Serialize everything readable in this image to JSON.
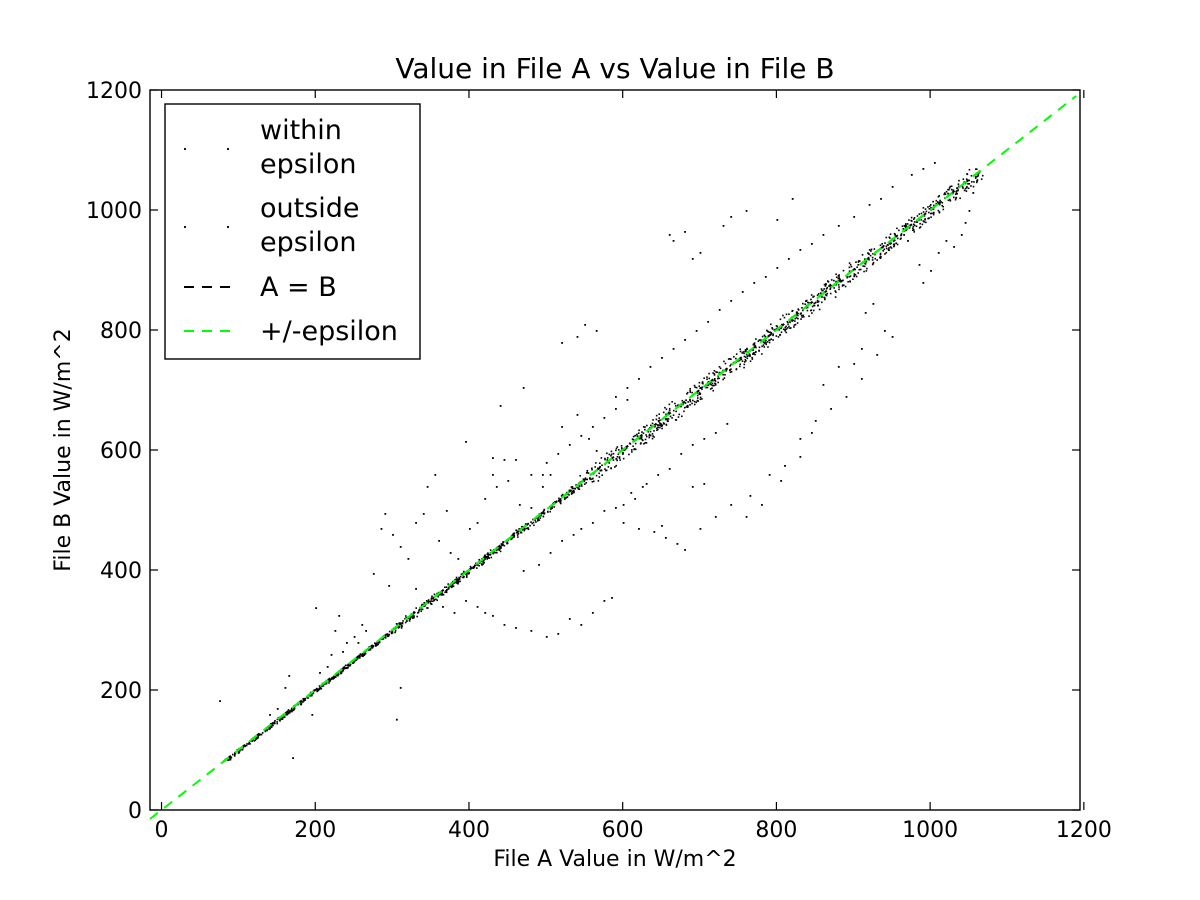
{
  "chart_data": {
    "type": "scatter",
    "title": "Value in File A vs Value in File B",
    "xlabel": "File A Value in W/m^2",
    "ylabel": "File B Value in W/m^2",
    "xlim": [
      -15,
      1195
    ],
    "ylim": [
      0,
      1200
    ],
    "xticks": [
      0,
      200,
      400,
      600,
      800,
      1000,
      1200
    ],
    "yticks": [
      0,
      200,
      400,
      600,
      800,
      1000,
      1200
    ],
    "x_tick_labels": [
      "0",
      "200",
      "400",
      "600",
      "800",
      "1000",
      "1200"
    ],
    "y_tick_labels": [
      "0",
      "200",
      "400",
      "600",
      "800",
      "1000",
      "1200"
    ],
    "grid": false,
    "legend_position": "top-left",
    "legend": {
      "within": [
        "within",
        "epsilon"
      ],
      "outside": [
        "outside",
        "epsilon"
      ],
      "a_equals_b": "A = B",
      "epsilon": "+/-epsilon"
    },
    "series": [
      {
        "name": "within epsilon",
        "kind": "points",
        "color": "#000000",
        "points_described": "dense band of tens of thousands of points hugging the line y = x from about x = 80 to x = 1065; band widens above x = 550",
        "x_range": [
          80,
          1065
        ]
      },
      {
        "name": "outside epsilon",
        "kind": "points",
        "color": "#000000",
        "points": [
          [
            75,
            183
          ],
          [
            170,
            88
          ],
          [
            195,
            160
          ],
          [
            200,
            338
          ],
          [
            230,
            325
          ],
          [
            225,
            300
          ],
          [
            305,
            152
          ],
          [
            310,
            205
          ],
          [
            395,
            615
          ],
          [
            430,
            588
          ],
          [
            440,
            675
          ],
          [
            470,
            705
          ],
          [
            520,
            780
          ],
          [
            540,
            790
          ],
          [
            550,
            810
          ],
          [
            565,
            800
          ],
          [
            660,
            960
          ],
          [
            665,
            950
          ],
          [
            680,
            965
          ],
          [
            690,
            920
          ],
          [
            700,
            930
          ],
          [
            730,
            975
          ],
          [
            740,
            990
          ],
          [
            760,
            1000
          ],
          [
            800,
            985
          ],
          [
            820,
            1020
          ],
          [
            915,
            830
          ],
          [
            925,
            845
          ],
          [
            940,
            800
          ],
          [
            965,
            960
          ],
          [
            970,
            950
          ],
          [
            860,
            710
          ],
          [
            880,
            740
          ],
          [
            900,
            745
          ],
          [
            910,
            770
          ],
          [
            760,
            490
          ],
          [
            780,
            510
          ],
          [
            805,
            550
          ],
          [
            830,
            590
          ],
          [
            845,
            630
          ],
          [
            600,
            510
          ],
          [
            615,
            520
          ],
          [
            625,
            540
          ],
          [
            650,
            475
          ],
          [
            690,
            540
          ],
          [
            705,
            545
          ],
          [
            420,
            520
          ],
          [
            435,
            540
          ],
          [
            450,
            550
          ],
          [
            465,
            510
          ],
          [
            480,
            505
          ],
          [
            495,
            540
          ],
          [
            505,
            560
          ],
          [
            330,
            480
          ],
          [
            340,
            495
          ],
          [
            360,
            450
          ],
          [
            375,
            430
          ],
          [
            385,
            420
          ],
          [
            400,
            470
          ],
          [
            410,
            480
          ],
          [
            345,
            540
          ],
          [
            355,
            560
          ],
          [
            370,
            500
          ],
          [
            285,
            470
          ],
          [
            290,
            495
          ],
          [
            300,
            460
          ],
          [
            310,
            440
          ],
          [
            320,
            420
          ],
          [
            275,
            395
          ],
          [
            295,
            375
          ],
          [
            330,
            370
          ],
          [
            365,
            340
          ],
          [
            380,
            330
          ],
          [
            395,
            350
          ],
          [
            410,
            340
          ],
          [
            420,
            330
          ],
          [
            430,
            325
          ],
          [
            445,
            310
          ],
          [
            460,
            305
          ],
          [
            480,
            300
          ],
          [
            500,
            290
          ],
          [
            515,
            295
          ],
          [
            530,
            320
          ],
          [
            545,
            310
          ],
          [
            560,
            330
          ],
          [
            575,
            350
          ],
          [
            585,
            355
          ],
          [
            470,
            400
          ],
          [
            490,
            410
          ],
          [
            505,
            430
          ],
          [
            520,
            450
          ],
          [
            535,
            460
          ],
          [
            545,
            470
          ],
          [
            560,
            480
          ],
          [
            575,
            500
          ],
          [
            590,
            505
          ],
          [
            610,
            530
          ],
          [
            630,
            545
          ],
          [
            645,
            560
          ],
          [
            660,
            570
          ],
          [
            675,
            595
          ],
          [
            690,
            610
          ],
          [
            705,
            620
          ],
          [
            720,
            630
          ],
          [
            735,
            645
          ],
          [
            500,
            580
          ],
          [
            515,
            595
          ],
          [
            530,
            610
          ],
          [
            545,
            625
          ],
          [
            560,
            640
          ],
          [
            575,
            655
          ],
          [
            590,
            670
          ],
          [
            605,
            685
          ],
          [
            520,
            640
          ],
          [
            540,
            660
          ],
          [
            555,
            620
          ],
          [
            565,
            600
          ],
          [
            495,
            560
          ],
          [
            480,
            560
          ],
          [
            460,
            585
          ],
          [
            445,
            585
          ],
          [
            430,
            560
          ],
          [
            250,
            290
          ],
          [
            260,
            310
          ],
          [
            265,
            300
          ],
          [
            255,
            280
          ],
          [
            240,
            280
          ],
          [
            235,
            265
          ],
          [
            215,
            240
          ],
          [
            220,
            260
          ],
          [
            205,
            230
          ],
          [
            160,
            205
          ],
          [
            165,
            225
          ],
          [
            150,
            170
          ],
          [
            140,
            160
          ],
          [
            600,
            480
          ],
          [
            620,
            470
          ],
          [
            640,
            465
          ],
          [
            655,
            455
          ],
          [
            670,
            445
          ],
          [
            680,
            435
          ],
          [
            700,
            470
          ],
          [
            720,
            490
          ],
          [
            740,
            510
          ],
          [
            765,
            525
          ],
          [
            790,
            560
          ],
          [
            810,
            575
          ],
          [
            830,
            620
          ],
          [
            850,
            650
          ],
          [
            870,
            670
          ],
          [
            890,
            690
          ],
          [
            910,
            720
          ],
          [
            930,
            760
          ],
          [
            950,
            790
          ],
          [
            985,
            910
          ],
          [
            990,
            880
          ],
          [
            1000,
            900
          ],
          [
            1010,
            930
          ],
          [
            1020,
            950
          ],
          [
            1030,
            940
          ],
          [
            1040,
            960
          ],
          [
            1045,
            980
          ],
          [
            1050,
            1000
          ],
          [
            1055,
            1030
          ],
          [
            1060,
            1050
          ],
          [
            1005,
            1080
          ],
          [
            990,
            1070
          ],
          [
            975,
            1060
          ],
          [
            950,
            1040
          ],
          [
            935,
            1020
          ],
          [
            920,
            1010
          ],
          [
            900,
            990
          ],
          [
            880,
            975
          ],
          [
            860,
            960
          ],
          [
            845,
            945
          ],
          [
            830,
            935
          ],
          [
            815,
            920
          ],
          [
            800,
            905
          ],
          [
            785,
            890
          ],
          [
            770,
            880
          ],
          [
            755,
            865
          ],
          [
            740,
            850
          ],
          [
            725,
            835
          ],
          [
            710,
            815
          ],
          [
            695,
            800
          ],
          [
            680,
            785
          ],
          [
            665,
            770
          ],
          [
            650,
            755
          ],
          [
            635,
            740
          ],
          [
            620,
            720
          ],
          [
            605,
            705
          ],
          [
            590,
            690
          ]
        ]
      },
      {
        "name": "A = B",
        "kind": "line",
        "style": "dashed",
        "color": "#000000",
        "x": [
          80,
          1065
        ],
        "y": [
          80,
          1065
        ]
      },
      {
        "name": "+/-epsilon",
        "kind": "line",
        "style": "dashed",
        "color": "#00ff00",
        "x": [
          -15,
          1190
        ],
        "y": [
          -15,
          1190
        ]
      }
    ]
  }
}
